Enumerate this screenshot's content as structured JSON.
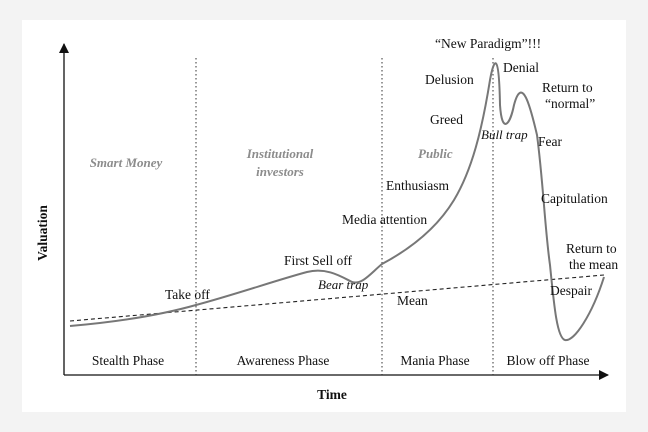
{
  "axes": {
    "x_label": "Time",
    "y_label": "Valuation"
  },
  "phases": [
    "Stealth Phase",
    "Awareness Phase",
    "Mania Phase",
    "Blow off Phase"
  ],
  "groups": {
    "smart_money": "Smart Money",
    "institutional_line1": "Institutional",
    "institutional_line2": "investors",
    "public": "Public"
  },
  "stages": {
    "take_off": "Take off",
    "first_sell_off": "First Sell off",
    "bear_trap": "Bear trap",
    "media_attention": "Media attention",
    "enthusiasm": "Enthusiasm",
    "greed": "Greed",
    "delusion": "Delusion",
    "new_paradigm": "“New Paradigm”!!!",
    "denial": "Denial",
    "bull_trap": "Bull trap",
    "return_normal_line1": "Return to",
    "return_normal_line2": "“normal”",
    "fear": "Fear",
    "capitulation": "Capitulation",
    "despair": "Despair",
    "return_mean_line1": "Return to",
    "return_mean_line2": "the mean",
    "mean": "Mean"
  },
  "colors": {
    "curve": "#777777",
    "text": "#111111",
    "group_text": "#8c8c8c",
    "background": "#f3f3f3"
  }
}
